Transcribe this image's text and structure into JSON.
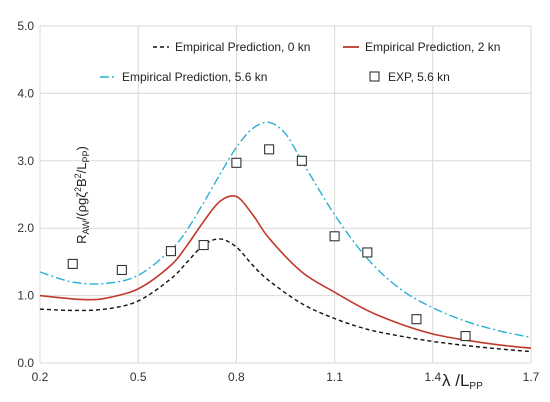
{
  "chart_data": {
    "type": "line",
    "title": "",
    "xlabel": "λ /L",
    "xlabel_sub": "PP",
    "ylabel_parts": [
      "R",
      "AW",
      "/(ρgζ",
      "2",
      "B",
      "2",
      "/L",
      "PP",
      ")"
    ],
    "xlim": [
      0.2,
      1.7
    ],
    "ylim": [
      0.0,
      5.0
    ],
    "x_ticks": [
      "0.2",
      "0.5",
      "0.8",
      "1.1",
      "1.4",
      "1.7"
    ],
    "y_ticks": [
      "0.0",
      "1.0",
      "2.0",
      "3.0",
      "4.0",
      "5.0"
    ],
    "grid": "both",
    "legend_position": "top",
    "series": [
      {
        "name": "Empirical Prediction, 0 kn",
        "style": "dashed",
        "color": "#111111",
        "x": [
          0.2,
          0.3,
          0.4,
          0.5,
          0.6,
          0.65,
          0.7,
          0.75,
          0.8,
          0.85,
          0.9,
          1.0,
          1.1,
          1.2,
          1.3,
          1.4,
          1.5,
          1.6,
          1.7
        ],
        "y": [
          0.8,
          0.78,
          0.8,
          0.92,
          1.25,
          1.5,
          1.75,
          1.84,
          1.72,
          1.45,
          1.22,
          0.88,
          0.66,
          0.5,
          0.4,
          0.32,
          0.26,
          0.21,
          0.17
        ]
      },
      {
        "name": "Empirical Prediction, 2 kn",
        "style": "solid",
        "color": "#c0392b",
        "x": [
          0.2,
          0.3,
          0.35,
          0.4,
          0.5,
          0.6,
          0.65,
          0.7,
          0.75,
          0.8,
          0.85,
          0.9,
          1.0,
          1.1,
          1.2,
          1.3,
          1.4,
          1.5,
          1.6,
          1.7
        ],
        "y": [
          1.0,
          0.95,
          0.94,
          0.96,
          1.1,
          1.45,
          1.75,
          2.1,
          2.4,
          2.47,
          2.2,
          1.85,
          1.35,
          1.05,
          0.78,
          0.58,
          0.43,
          0.34,
          0.27,
          0.22
        ]
      },
      {
        "name": "Empirical Prediction, 5.6 kn",
        "style": "dashdot",
        "color": "#2ab0d4",
        "x": [
          0.2,
          0.3,
          0.4,
          0.5,
          0.6,
          0.65,
          0.7,
          0.75,
          0.8,
          0.85,
          0.9,
          0.95,
          1.0,
          1.1,
          1.2,
          1.3,
          1.4,
          1.5,
          1.6,
          1.7
        ],
        "y": [
          1.35,
          1.2,
          1.18,
          1.3,
          1.68,
          1.98,
          2.38,
          2.8,
          3.2,
          3.48,
          3.57,
          3.4,
          3.0,
          2.2,
          1.55,
          1.1,
          0.82,
          0.62,
          0.48,
          0.38
        ]
      },
      {
        "name": "EXP, 5.6 kn",
        "style": "marker",
        "color": "#333333",
        "x": [
          0.3,
          0.45,
          0.6,
          0.7,
          0.8,
          0.9,
          1.0,
          1.1,
          1.2,
          1.35,
          1.5
        ],
        "y": [
          1.47,
          1.38,
          1.66,
          1.75,
          2.97,
          3.17,
          3.0,
          1.88,
          1.64,
          0.65,
          0.4
        ]
      }
    ]
  }
}
